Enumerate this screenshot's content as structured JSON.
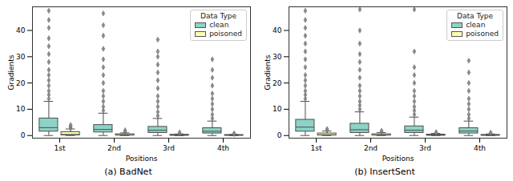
{
  "chart_data": [
    {
      "type": "box",
      "title": "(a) BadNet",
      "x_label": "Positions",
      "y_label": "Gradients",
      "categories": [
        "1st",
        "2nd",
        "3rd",
        "4th"
      ],
      "ylim": [
        -1,
        49
      ],
      "yticks": [
        0,
        10,
        20,
        30,
        40
      ],
      "legend": "upper right",
      "legend_title": "Data Type",
      "series": [
        {
          "name": "clean",
          "color": "#8dd3c7",
          "boxes": [
            {
              "whislo": 0,
              "q1": 1.5,
              "med": 3,
              "q3": 6.5,
              "whishi": 13,
              "outliers": [
                14,
                15.5,
                17,
                19,
                21,
                23,
                25,
                28,
                31,
                34,
                37,
                41,
                44,
                47.5
              ]
            },
            {
              "whislo": 0,
              "q1": 1.2,
              "med": 2.3,
              "q3": 4,
              "whishi": 8.5,
              "outliers": [
                9.5,
                11,
                13,
                15,
                17,
                20,
                23,
                26,
                29,
                33,
                38,
                42,
                46.5
              ]
            },
            {
              "whislo": 0,
              "q1": 1,
              "med": 2,
              "q3": 3.3,
              "whishi": 6.5,
              "outliers": [
                7.5,
                9,
                11,
                13,
                15,
                18,
                21,
                24,
                27,
                30,
                32,
                36.5
              ]
            },
            {
              "whislo": 0,
              "q1": 0.8,
              "med": 1.6,
              "q3": 2.8,
              "whishi": 5.5,
              "outliers": [
                6.5,
                8,
                10,
                12,
                14,
                16,
                19,
                22,
                25,
                29
              ]
            }
          ]
        },
        {
          "name": "poisoned",
          "color": "#ffffb3",
          "boxes": [
            {
              "whislo": 0,
              "q1": 0.1,
              "med": 0.4,
              "q3": 1.3,
              "whishi": 2.5,
              "outliers": [
                2.8,
                3.2,
                3.6,
                4
              ]
            },
            {
              "whislo": 0,
              "q1": 0.05,
              "med": 0.2,
              "q3": 0.5,
              "whishi": 1,
              "outliers": [
                1.2,
                1.5,
                2
              ]
            },
            {
              "whislo": 0,
              "q1": 0.03,
              "med": 0.1,
              "q3": 0.3,
              "whishi": 0.6,
              "outliers": [
                0.8,
                1.2
              ]
            },
            {
              "whislo": 0,
              "q1": 0.02,
              "med": 0.08,
              "q3": 0.2,
              "whishi": 0.4,
              "outliers": [
                0.6,
                0.8
              ]
            }
          ]
        }
      ]
    },
    {
      "type": "box",
      "title": "(b) InsertSent",
      "x_label": "Positions",
      "y_label": "Gradients",
      "categories": [
        "1st",
        "2nd",
        "3rd",
        "4th"
      ],
      "ylim": [
        -1,
        49
      ],
      "yticks": [
        0,
        10,
        20,
        30,
        40
      ],
      "legend": "upper right",
      "legend_title": "Data Type",
      "series": [
        {
          "name": "clean",
          "color": "#8dd3c7",
          "boxes": [
            {
              "whislo": 0,
              "q1": 1.5,
              "med": 3.2,
              "q3": 6,
              "whishi": 13,
              "outliers": [
                14,
                15.5,
                17,
                19,
                21,
                23,
                26,
                29,
                32,
                35,
                38,
                41,
                44,
                47.5
              ]
            },
            {
              "whislo": 0,
              "q1": 1,
              "med": 2.2,
              "q3": 4.5,
              "whishi": 9,
              "outliers": [
                10,
                11.5,
                13,
                15,
                17,
                19,
                22,
                25,
                28,
                31,
                35,
                40,
                48
              ]
            },
            {
              "whislo": 0,
              "q1": 1,
              "med": 2,
              "q3": 3.5,
              "whishi": 7,
              "outliers": [
                8,
                9.5,
                11,
                13,
                15,
                17,
                20,
                23,
                26,
                32,
                48
              ]
            },
            {
              "whislo": 0,
              "q1": 0.8,
              "med": 1.7,
              "q3": 2.8,
              "whishi": 5.5,
              "outliers": [
                6.5,
                8,
                10,
                12,
                14,
                17,
                20,
                24,
                28.5
              ]
            }
          ]
        },
        {
          "name": "poisoned",
          "color": "#ffffb3",
          "boxes": [
            {
              "whislo": 0,
              "q1": 0.05,
              "med": 0.3,
              "q3": 0.8,
              "whishi": 1.7,
              "outliers": [
                2,
                2.5
              ]
            },
            {
              "whislo": 0,
              "q1": 0.04,
              "med": 0.2,
              "q3": 0.5,
              "whishi": 1.1,
              "outliers": [
                1.4,
                1.8
              ]
            },
            {
              "whislo": 0,
              "q1": 0.03,
              "med": 0.12,
              "q3": 0.35,
              "whishi": 0.8,
              "outliers": [
                1,
                1.3
              ]
            },
            {
              "whislo": 0,
              "q1": 0.02,
              "med": 0.1,
              "q3": 0.25,
              "whishi": 0.6,
              "outliers": [
                0.8,
                1.1
              ]
            }
          ]
        }
      ]
    }
  ]
}
